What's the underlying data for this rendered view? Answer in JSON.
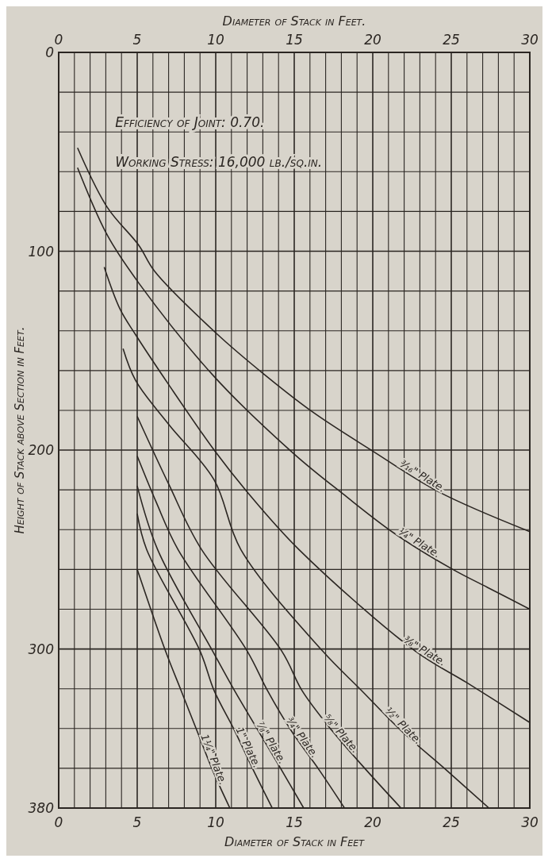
{
  "chart_data": {
    "type": "line",
    "x2label": "Diameter of Stack in Feet.",
    "xlabel": "Diameter of Stack in Feet",
    "ylabel": "Height of Stack above Section in Feet.",
    "annotations": [
      "Efficiency of Joint: 0.70.",
      "Working Stress: 16,000 lb./sq.in."
    ],
    "xlim": [
      0,
      30
    ],
    "x2lim": [
      0,
      30
    ],
    "ylim": [
      380,
      0
    ],
    "xticks": [
      0,
      {
        "value": 1,
        "label": null
      },
      {
        "value": 2,
        "label": null
      },
      {
        "value": 3,
        "label": null
      },
      {
        "value": 4,
        "label": null
      },
      5,
      {
        "value": 6,
        "label": null
      },
      {
        "value": 7,
        "label": null
      },
      {
        "value": 8,
        "label": null
      },
      {
        "value": 9,
        "label": null
      },
      10,
      {
        "value": 11,
        "label": null
      },
      {
        "value": 12,
        "label": null
      },
      {
        "value": 13,
        "label": null
      },
      {
        "value": 14,
        "label": null
      },
      15,
      {
        "value": 16,
        "label": null
      },
      {
        "value": 17,
        "label": null
      },
      {
        "value": 18,
        "label": null
      },
      {
        "value": 19,
        "label": null
      },
      20,
      {
        "value": 21,
        "label": null
      },
      {
        "value": 22,
        "label": null
      },
      {
        "value": 23,
        "label": null
      },
      {
        "value": 24,
        "label": null
      },
      25,
      {
        "value": 26,
        "label": null
      },
      {
        "value": 27,
        "label": null
      },
      {
        "value": 28,
        "label": null
      },
      {
        "value": 29,
        "label": null
      },
      30
    ],
    "x2ticks": [
      0,
      5,
      10,
      15,
      20,
      25,
      30
    ],
    "yticks": [
      0,
      {
        "value": 20,
        "label": null
      },
      {
        "value": 40,
        "label": null
      },
      {
        "value": 60,
        "label": null
      },
      {
        "value": 80,
        "label": null
      },
      100,
      {
        "value": 120,
        "label": null
      },
      {
        "value": 140,
        "label": null
      },
      {
        "value": 160,
        "label": null
      },
      {
        "value": 180,
        "label": null
      },
      200,
      {
        "value": 220,
        "label": null
      },
      {
        "value": 240,
        "label": null
      },
      {
        "value": 260,
        "label": null
      },
      {
        "value": 280,
        "label": null
      },
      300,
      {
        "value": 320,
        "label": null
      },
      {
        "value": 340,
        "label": null
      },
      {
        "value": 360,
        "label": null
      },
      380
    ],
    "grid": true,
    "marker": "none",
    "line_style": "solid",
    "series": [
      {
        "name": "³⁄₁₆\" Plate.",
        "color": "#2b2622",
        "x": [
          1.2,
          3.1,
          5.1,
          6.1,
          10,
          13.1,
          16.2,
          20.1,
          24.2,
          30
        ],
        "values": [
          48,
          78,
          97,
          110,
          141,
          162,
          181,
          201,
          221,
          241
        ]
      },
      {
        "name": "¼\" Plate.",
        "color": "#2b2622",
        "x": [
          1.2,
          3.1,
          5.1,
          9.9,
          15,
          18.1,
          21.4,
          25.1,
          27.3,
          30
        ],
        "values": [
          58,
          92,
          116,
          163,
          202,
          222,
          242,
          260,
          269,
          280
        ]
      },
      {
        "name": "⅜\" Plate.",
        "color": "#2b2622",
        "x": [
          2.9,
          3.9,
          4.9,
          7,
          9.9,
          12,
          15.3,
          22.7,
          26,
          30
        ],
        "values": [
          108,
          129,
          142,
          167,
          200,
          221,
          250,
          301,
          317,
          337
        ]
      },
      {
        "name": "½\" Plate.",
        "color": "#2b2622",
        "x": [
          4.1,
          4.9,
          7,
          9.9,
          11.6,
          16.8,
          19.3,
          21.8,
          24.7,
          27.4
        ],
        "values": [
          149,
          165,
          187,
          215,
          250,
          301,
          321,
          341,
          361,
          380
        ]
      },
      {
        "name": "⅝\" Plate.",
        "color": "#2b2622",
        "x": [
          5,
          7,
          9.1,
          14.2,
          15.5,
          17.4,
          19.6,
          21.8
        ],
        "values": [
          183,
          217,
          250,
          301,
          321,
          341,
          361,
          380
        ]
      },
      {
        "name": "¾\" Plate.",
        "color": "#2b2622",
        "x": [
          5,
          6.2,
          7.6,
          12,
          13.3,
          14.8,
          16.6,
          18.2
        ],
        "values": [
          203,
          226,
          250,
          301,
          321,
          341,
          361,
          380
        ]
      },
      {
        "name": "⅞\" Plate.",
        "color": "#2b2622",
        "x": [
          5,
          6.3,
          9.8,
          11.2,
          12.7,
          14.2,
          15.6
        ],
        "values": [
          218,
          250,
          301,
          321,
          341,
          361,
          380
        ]
      },
      {
        "name": "1\" Plate.",
        "color": "#2b2622",
        "x": [
          5,
          5.6,
          9,
          9.9,
          11.2,
          12.4,
          13.6
        ],
        "values": [
          232,
          250,
          301,
          321,
          341,
          361,
          380
        ]
      },
      {
        "name": "1¼\" Plate.",
        "color": "#2b2622",
        "x": [
          5,
          6.8,
          7.8,
          8.8,
          9.8,
          10.9
        ],
        "values": [
          260,
          301,
          321,
          341,
          361,
          380
        ]
      }
    ]
  }
}
